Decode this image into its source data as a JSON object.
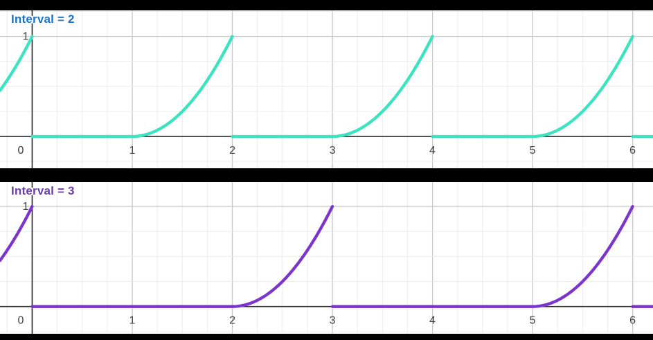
{
  "app": {
    "name": "graph-viewer",
    "background": "#000000"
  },
  "grid": {
    "minor_step": 0.25,
    "major_step": 1,
    "minor_color": "#ececec",
    "major_color": "#c7c7c7",
    "axis_color": "#2f2f2f",
    "tick_label_color": "#404040",
    "plot_background": "#ffffff"
  },
  "chart_data": [
    {
      "type": "line",
      "title": "Interval = 2",
      "title_color": "#1d73c4",
      "curve_color": "#3be3c0",
      "interval": 2,
      "easing": "quadratic",
      "description": "Periodic ramp: y = 0 on [2k, 2k+1], then y = (x-(2k+1))^2 rising to 1 at x = 2k+2, instantly resetting to 0. Peaks (value 1) at x = 0, 2, 4, 6.",
      "key_points": [
        [
          -1,
          0
        ],
        [
          0,
          1
        ],
        [
          0,
          0
        ],
        [
          1,
          0
        ],
        [
          2,
          1
        ],
        [
          2,
          0
        ],
        [
          3,
          0
        ],
        [
          4,
          1
        ],
        [
          4,
          0
        ],
        [
          5,
          0
        ],
        [
          6,
          1
        ],
        [
          6,
          0
        ]
      ],
      "x_ticks": [
        0,
        1,
        2,
        3,
        4,
        5,
        6
      ],
      "y_ticks": [
        1
      ],
      "xlim": [
        -0.3217,
        6.2033
      ],
      "ylim": [
        -0.318,
        1.26
      ],
      "grid": true,
      "legend": "none"
    },
    {
      "type": "line",
      "title": "Interval = 3",
      "title_color": "#6a3fa2",
      "curve_color": "#7b35cd",
      "interval": 3,
      "easing": "quadratic",
      "description": "Periodic ramp: y = 0 on [3k, 3k+2], then y = (x-(3k+2))^2 rising to 1 at x = 3k+3, instantly resetting to 0. Peaks (value 1) at x = 0, 3, 6.",
      "key_points": [
        [
          -1,
          0
        ],
        [
          0,
          1
        ],
        [
          0,
          0
        ],
        [
          2,
          0
        ],
        [
          3,
          1
        ],
        [
          3,
          0
        ],
        [
          5,
          0
        ],
        [
          6,
          1
        ],
        [
          6,
          0
        ]
      ],
      "x_ticks": [
        0,
        1,
        2,
        3,
        4,
        5,
        6
      ],
      "y_ticks": [
        1
      ],
      "xlim": [
        -0.3217,
        6.2033
      ],
      "ylim": [
        -0.272,
        1.243
      ],
      "grid": true,
      "legend": "none"
    }
  ]
}
